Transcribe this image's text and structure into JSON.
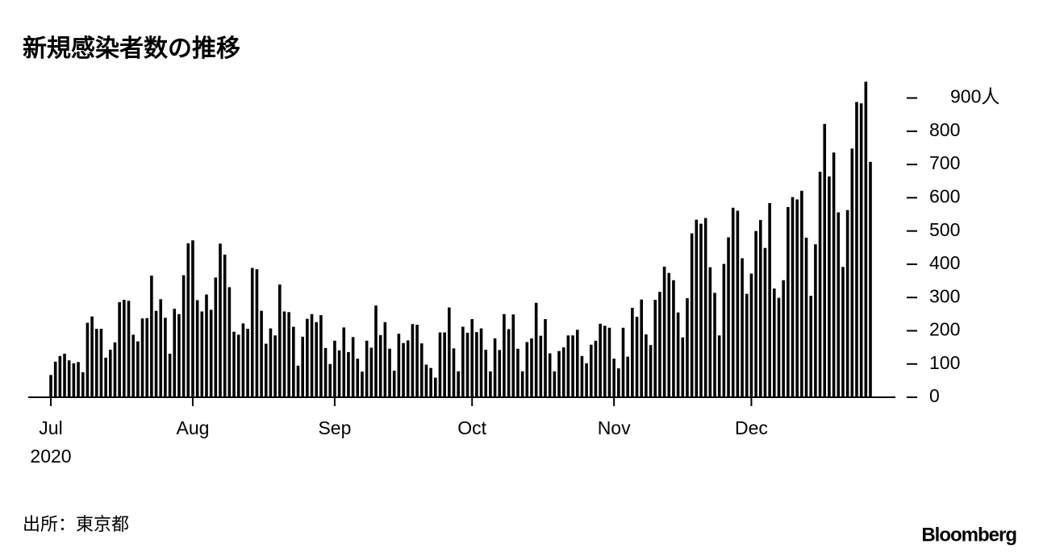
{
  "chart_data": {
    "type": "bar",
    "title": "新規感染者数の推移",
    "source": "出所：東京都",
    "brand": "Bloomberg",
    "year_label": "2020",
    "color": "#000000",
    "categories": [
      "Jul",
      null,
      null,
      null,
      null,
      null,
      null,
      null,
      null,
      null,
      null,
      null,
      null,
      null,
      null,
      null,
      null,
      null,
      null,
      null,
      null,
      null,
      null,
      null,
      null,
      null,
      null,
      null,
      null,
      null,
      null,
      "Aug",
      null,
      null,
      null,
      null,
      null,
      null,
      null,
      null,
      null,
      null,
      null,
      null,
      null,
      null,
      null,
      null,
      null,
      null,
      null,
      null,
      null,
      null,
      null,
      null,
      null,
      null,
      null,
      null,
      null,
      null,
      "Sep",
      null,
      null,
      null,
      null,
      null,
      null,
      null,
      null,
      null,
      null,
      null,
      null,
      null,
      null,
      null,
      null,
      null,
      null,
      null,
      null,
      null,
      null,
      null,
      null,
      null,
      null,
      null,
      null,
      null,
      "Oct",
      null,
      null,
      null,
      null,
      null,
      null,
      null,
      null,
      null,
      null,
      null,
      null,
      null,
      null,
      null,
      null,
      null,
      null,
      null,
      null,
      null,
      null,
      null,
      null,
      null,
      null,
      null,
      null,
      null,
      null,
      "Nov",
      null,
      null,
      null,
      null,
      null,
      null,
      null,
      null,
      null,
      null,
      null,
      null,
      null,
      null,
      null,
      null,
      null,
      null,
      null,
      null,
      null,
      null,
      null,
      null,
      null,
      null,
      null,
      null,
      null,
      "Dec",
      null,
      null,
      null,
      null,
      null,
      null,
      null,
      null,
      null,
      null,
      null,
      null,
      null,
      null,
      null,
      null,
      null,
      null,
      null,
      null,
      null,
      null,
      null,
      null,
      null,
      null
    ],
    "values": [
      67,
      107,
      124,
      131,
      111,
      102,
      106,
      75,
      224,
      243,
      206,
      206,
      119,
      143,
      165,
      286,
      293,
      290,
      188,
      168,
      237,
      238,
      366,
      260,
      295,
      239,
      131,
      266,
      250,
      367,
      463,
      472,
      292,
      258,
      309,
      263,
      360,
      462,
      429,
      331,
      197,
      188,
      222,
      206,
      389,
      385,
      260,
      161,
      207,
      186,
      339,
      258,
      256,
      212,
      95,
      182,
      236,
      250,
      226,
      247,
      148,
      100,
      170,
      141,
      210,
      136,
      181,
      116,
      77,
      170,
      149,
      276,
      187,
      226,
      146,
      80,
      191,
      163,
      171,
      220,
      218,
      162,
      98,
      88,
      59,
      195,
      195,
      270,
      147,
      78,
      212,
      194,
      235,
      196,
      207,
      143,
      78,
      177,
      142,
      250,
      205,
      249,
      146,
      78,
      166,
      177,
      284,
      185,
      235,
      132,
      78,
      139,
      150,
      186,
      186,
      203,
      124,
      102,
      158,
      170,
      221,
      215,
      209,
      116,
      87,
      209,
      122,
      269,
      242,
      294,
      189,
      157,
      293,
      317,
      393,
      374,
      352,
      255,
      180,
      298,
      493,
      534,
      522,
      539,
      391,
      314,
      186,
      401,
      481,
      570,
      561,
      418,
      311,
      372,
      500,
      533,
      449,
      584,
      327,
      299,
      352,
      572,
      602,
      595,
      621,
      480,
      305,
      460,
      678,
      822,
      664,
      736,
      556,
      392,
      563,
      748,
      888,
      884,
      949,
      708
    ],
    "ylim": [
      0,
      950
    ],
    "yticks": [
      0,
      100,
      200,
      300,
      400,
      500,
      600,
      700,
      800,
      {
        "value": 900,
        "label": "900人"
      }
    ]
  }
}
